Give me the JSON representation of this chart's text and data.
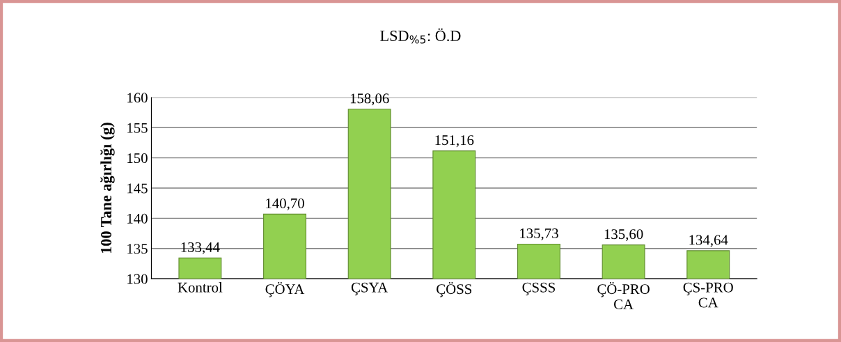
{
  "chart_data": {
    "type": "bar",
    "title": "LSD$_{%5}$: Ö.D",
    "ylabel": "100 Tane ağırlığı (g)",
    "categories": [
      "Kontrol",
      "ÇÖYA",
      "ÇSYA",
      "ÇÖSS",
      "ÇSSS",
      "ÇÖ-PRO\nCA",
      "ÇS-PRO\nCA"
    ],
    "values": [
      133.44,
      140.7,
      158.06,
      151.16,
      135.73,
      135.6,
      134.64
    ],
    "value_labels": [
      "133,44",
      "140,70",
      "158,06",
      "151,16",
      "135,73",
      "135,60",
      "134,64"
    ],
    "color": "#92d050",
    "ylim": [
      130,
      160
    ],
    "yticks": [
      130,
      135,
      140,
      145,
      150,
      155,
      160
    ],
    "grid": "y",
    "legend": false
  }
}
